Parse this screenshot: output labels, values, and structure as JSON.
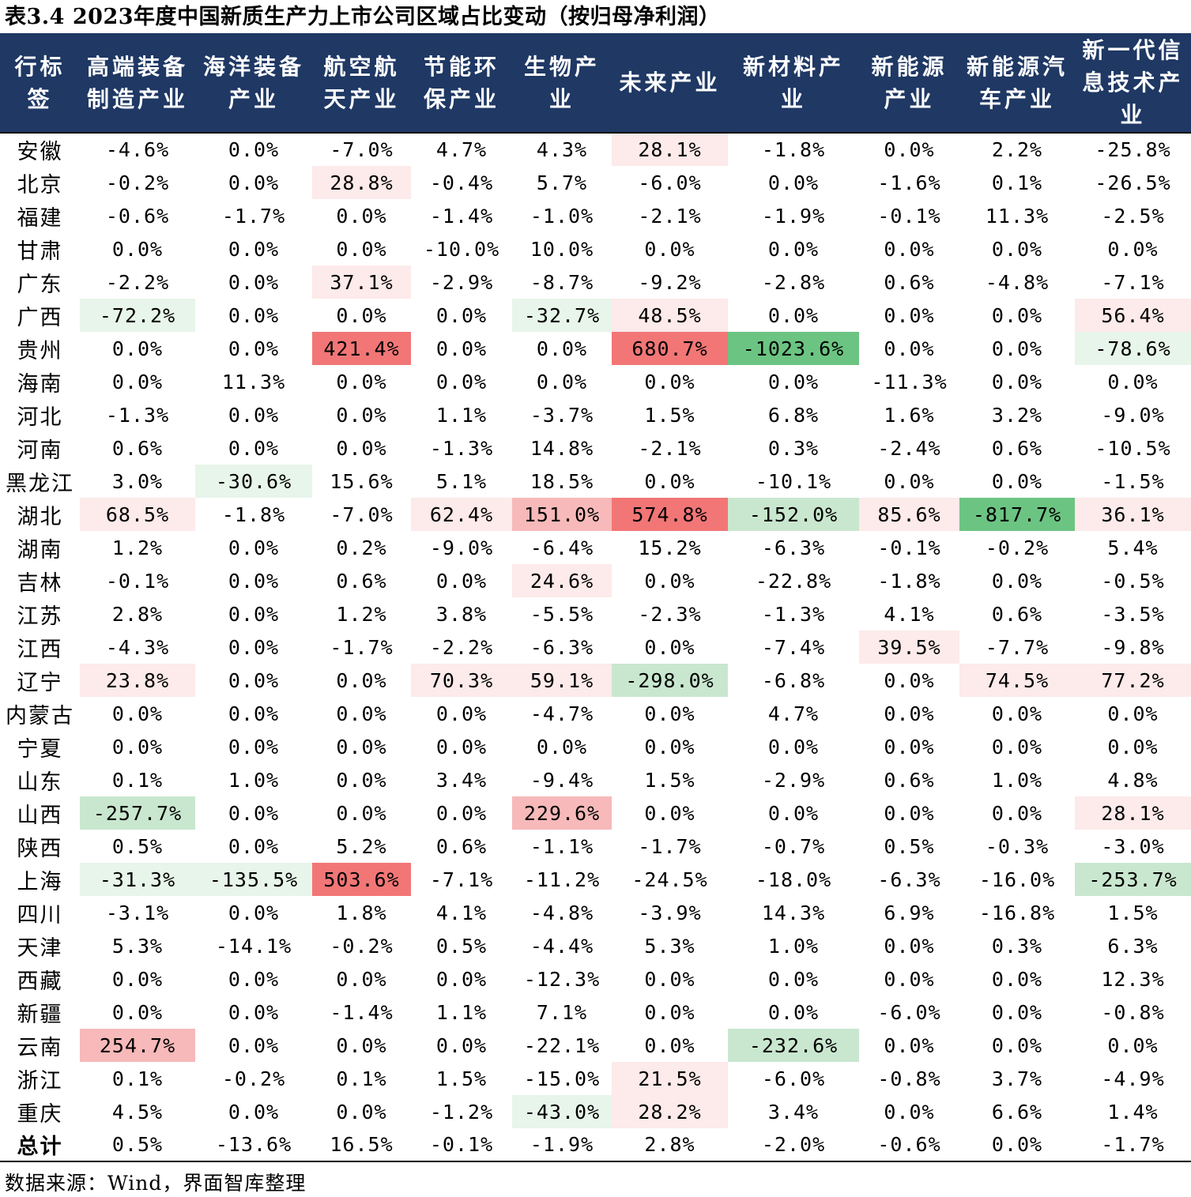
{
  "title": "表3.4 2023年度中国新质生产力上市公司区域占比变动（按归母净利润）",
  "source": "数据来源：Wind，界面智库整理",
  "colors": {
    "header_bg": "#1f3864",
    "pos_light": "#fdeaea",
    "pos_mid": "#f7b9b9",
    "pos_strong": "#f27676",
    "neg_light": "#e8f5ea",
    "neg_mid": "#c9e7cf",
    "neg_strong": "#6cc482"
  },
  "headers": [
    [
      "行标",
      "签"
    ],
    [
      "高端装备",
      "制造产业"
    ],
    [
      "海洋装备",
      "产业"
    ],
    [
      "航空航",
      "天产业"
    ],
    [
      "节能环",
      "保产业"
    ],
    [
      "生物产",
      "业"
    ],
    [
      "未来产业"
    ],
    [
      "新材料产",
      "业"
    ],
    [
      "新能源",
      "产业"
    ],
    [
      "新能源汽",
      "车产业"
    ],
    [
      "新一代信",
      "息技术产",
      "业"
    ]
  ],
  "rows": [
    {
      "region": "安徽",
      "values": [
        "-4.6%",
        "0.0%",
        "-7.0%",
        "4.7%",
        "4.3%",
        "28.1%",
        "-1.8%",
        "0.0%",
        "2.2%",
        "-25.8%"
      ]
    },
    {
      "region": "北京",
      "values": [
        "-0.2%",
        "0.0%",
        "28.8%",
        "-0.4%",
        "5.7%",
        "-6.0%",
        "0.0%",
        "-1.6%",
        "0.1%",
        "-26.5%"
      ]
    },
    {
      "region": "福建",
      "values": [
        "-0.6%",
        "-1.7%",
        "0.0%",
        "-1.4%",
        "-1.0%",
        "-2.1%",
        "-1.9%",
        "-0.1%",
        "11.3%",
        "-2.5%"
      ]
    },
    {
      "region": "甘肃",
      "values": [
        "0.0%",
        "0.0%",
        "0.0%",
        "-10.0%",
        "10.0%",
        "0.0%",
        "0.0%",
        "0.0%",
        "0.0%",
        "0.0%"
      ]
    },
    {
      "region": "广东",
      "values": [
        "-2.2%",
        "0.0%",
        "37.1%",
        "-2.9%",
        "-8.7%",
        "-9.2%",
        "-2.8%",
        "0.6%",
        "-4.8%",
        "-7.1%"
      ]
    },
    {
      "region": "广西",
      "values": [
        "-72.2%",
        "0.0%",
        "0.0%",
        "0.0%",
        "-32.7%",
        "48.5%",
        "0.0%",
        "0.0%",
        "0.0%",
        "56.4%"
      ]
    },
    {
      "region": "贵州",
      "values": [
        "0.0%",
        "0.0%",
        "421.4%",
        "0.0%",
        "0.0%",
        "680.7%",
        "-1023.6%",
        "0.0%",
        "0.0%",
        "-78.6%"
      ]
    },
    {
      "region": "海南",
      "values": [
        "0.0%",
        "11.3%",
        "0.0%",
        "0.0%",
        "0.0%",
        "0.0%",
        "0.0%",
        "-11.3%",
        "0.0%",
        "0.0%"
      ]
    },
    {
      "region": "河北",
      "values": [
        "-1.3%",
        "0.0%",
        "0.0%",
        "1.1%",
        "-3.7%",
        "1.5%",
        "6.8%",
        "1.6%",
        "3.2%",
        "-9.0%"
      ]
    },
    {
      "region": "河南",
      "values": [
        "0.6%",
        "0.0%",
        "0.0%",
        "-1.3%",
        "14.8%",
        "-2.1%",
        "0.3%",
        "-2.4%",
        "0.6%",
        "-10.5%"
      ]
    },
    {
      "region": "黑龙江",
      "values": [
        "3.0%",
        "-30.6%",
        "15.6%",
        "5.1%",
        "18.5%",
        "0.0%",
        "-10.1%",
        "0.0%",
        "0.0%",
        "-1.5%"
      ]
    },
    {
      "region": "湖北",
      "values": [
        "68.5%",
        "-1.8%",
        "-7.0%",
        "62.4%",
        "151.0%",
        "574.8%",
        "-152.0%",
        "85.6%",
        "-817.7%",
        "36.1%"
      ]
    },
    {
      "region": "湖南",
      "values": [
        "1.2%",
        "0.0%",
        "0.2%",
        "-9.0%",
        "-6.4%",
        "15.2%",
        "-6.3%",
        "-0.1%",
        "-0.2%",
        "5.4%"
      ]
    },
    {
      "region": "吉林",
      "values": [
        "-0.1%",
        "0.0%",
        "0.6%",
        "0.0%",
        "24.6%",
        "0.0%",
        "-22.8%",
        "-1.8%",
        "0.0%",
        "-0.5%"
      ]
    },
    {
      "region": "江苏",
      "values": [
        "2.8%",
        "0.0%",
        "1.2%",
        "3.8%",
        "-5.5%",
        "-2.3%",
        "-1.3%",
        "4.1%",
        "0.6%",
        "-3.5%"
      ]
    },
    {
      "region": "江西",
      "values": [
        "-4.3%",
        "0.0%",
        "-1.7%",
        "-2.2%",
        "-6.3%",
        "0.0%",
        "-7.4%",
        "39.5%",
        "-7.7%",
        "-9.8%"
      ]
    },
    {
      "region": "辽宁",
      "values": [
        "23.8%",
        "0.0%",
        "0.0%",
        "70.3%",
        "59.1%",
        "-298.0%",
        "-6.8%",
        "0.0%",
        "74.5%",
        "77.2%"
      ]
    },
    {
      "region": "内蒙古",
      "values": [
        "0.0%",
        "0.0%",
        "0.0%",
        "0.0%",
        "-4.7%",
        "0.0%",
        "4.7%",
        "0.0%",
        "0.0%",
        "0.0%"
      ]
    },
    {
      "region": "宁夏",
      "values": [
        "0.0%",
        "0.0%",
        "0.0%",
        "0.0%",
        "0.0%",
        "0.0%",
        "0.0%",
        "0.0%",
        "0.0%",
        "0.0%"
      ]
    },
    {
      "region": "山东",
      "values": [
        "0.1%",
        "1.0%",
        "0.0%",
        "3.4%",
        "-9.4%",
        "1.5%",
        "-2.9%",
        "0.6%",
        "1.0%",
        "4.8%"
      ]
    },
    {
      "region": "山西",
      "values": [
        "-257.7%",
        "0.0%",
        "0.0%",
        "0.0%",
        "229.6%",
        "0.0%",
        "0.0%",
        "0.0%",
        "0.0%",
        "28.1%"
      ]
    },
    {
      "region": "陕西",
      "values": [
        "0.5%",
        "0.0%",
        "5.2%",
        "0.6%",
        "-1.1%",
        "-1.7%",
        "-0.7%",
        "0.5%",
        "-0.3%",
        "-3.0%"
      ]
    },
    {
      "region": "上海",
      "values": [
        "-31.3%",
        "-135.5%",
        "503.6%",
        "-7.1%",
        "-11.2%",
        "-24.5%",
        "-18.0%",
        "-6.3%",
        "-16.0%",
        "-253.7%"
      ]
    },
    {
      "region": "四川",
      "values": [
        "-3.1%",
        "0.0%",
        "1.8%",
        "4.1%",
        "-4.8%",
        "-3.9%",
        "14.3%",
        "6.9%",
        "-16.8%",
        "1.5%"
      ]
    },
    {
      "region": "天津",
      "values": [
        "5.3%",
        "-14.1%",
        "-0.2%",
        "0.5%",
        "-4.4%",
        "5.3%",
        "1.0%",
        "0.0%",
        "0.3%",
        "6.3%"
      ]
    },
    {
      "region": "西藏",
      "values": [
        "0.0%",
        "0.0%",
        "0.0%",
        "0.0%",
        "-12.3%",
        "0.0%",
        "0.0%",
        "0.0%",
        "0.0%",
        "12.3%"
      ]
    },
    {
      "region": "新疆",
      "values": [
        "0.0%",
        "0.0%",
        "-1.4%",
        "1.1%",
        "7.1%",
        "0.0%",
        "0.0%",
        "-6.0%",
        "0.0%",
        "-0.8%"
      ]
    },
    {
      "region": "云南",
      "values": [
        "254.7%",
        "0.0%",
        "0.0%",
        "0.0%",
        "-22.1%",
        "0.0%",
        "-232.6%",
        "0.0%",
        "0.0%",
        "0.0%"
      ]
    },
    {
      "region": "浙江",
      "values": [
        "0.1%",
        "-0.2%",
        "0.1%",
        "1.5%",
        "-15.0%",
        "21.5%",
        "-6.0%",
        "-0.8%",
        "3.7%",
        "-4.9%"
      ]
    },
    {
      "region": "重庆",
      "values": [
        "4.5%",
        "0.0%",
        "0.0%",
        "-1.2%",
        "-43.0%",
        "28.2%",
        "3.4%",
        "0.0%",
        "6.6%",
        "1.4%"
      ]
    },
    {
      "region": "总计",
      "values": [
        "0.5%",
        "-13.6%",
        "16.5%",
        "-0.1%",
        "-1.9%",
        "2.8%",
        "-2.0%",
        "-0.6%",
        "0.0%",
        "-1.7%"
      ]
    }
  ]
}
